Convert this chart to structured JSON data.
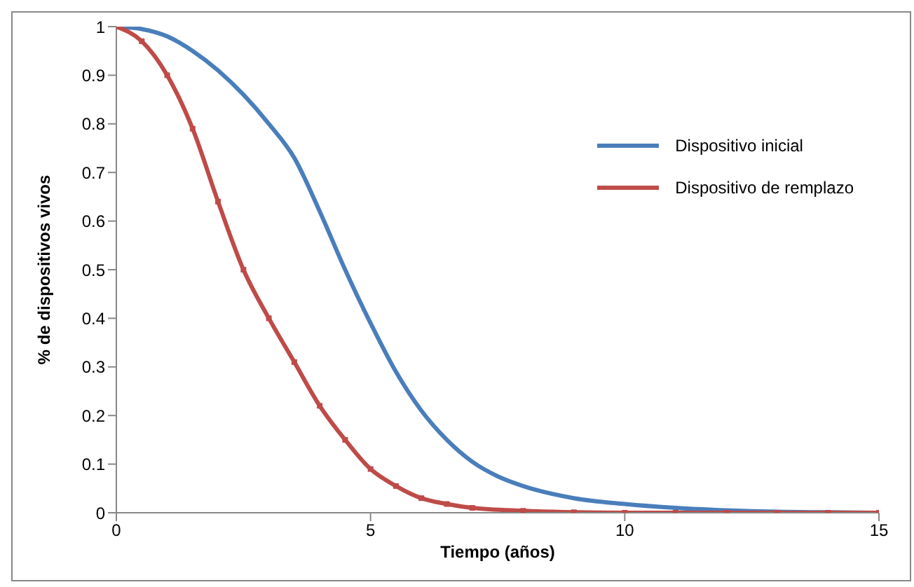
{
  "chart_data": {
    "type": "line",
    "xlabel": "Tiempo (años)",
    "ylabel": "% de dispositivos vivos",
    "xlim": [
      0,
      15
    ],
    "xticks": [
      0,
      5,
      10,
      15
    ],
    "ylim": [
      0,
      1
    ],
    "yticks": [
      0,
      0.1,
      0.2,
      0.3,
      0.4,
      0.5,
      0.6,
      0.7,
      0.8,
      0.9,
      1
    ],
    "grid": false,
    "legend": "top right",
    "series": [
      {
        "name": "Dispositivo inicial",
        "color": "#4a7ebb",
        "marker": "none",
        "x": [
          0,
          0.5,
          1,
          1.5,
          2,
          2.5,
          3,
          3.5,
          4,
          4.5,
          5,
          5.5,
          6,
          6.5,
          7,
          7.5,
          8,
          9,
          10,
          11,
          12,
          13,
          14,
          15
        ],
        "values": [
          1,
          0.995,
          0.98,
          0.95,
          0.91,
          0.86,
          0.8,
          0.73,
          0.62,
          0.5,
          0.39,
          0.29,
          0.21,
          0.15,
          0.105,
          0.075,
          0.055,
          0.03,
          0.018,
          0.01,
          0.005,
          0.002,
          0.001,
          0
        ]
      },
      {
        "name": "Dispositivo de remplazo",
        "color": "#be4b48",
        "marker": "square",
        "x": [
          0,
          0.5,
          1,
          1.5,
          2,
          2.5,
          3,
          3.5,
          4,
          4.5,
          5,
          5.5,
          6,
          6.5,
          7,
          8,
          9,
          10,
          11,
          12,
          13,
          14,
          15
        ],
        "values": [
          1,
          0.97,
          0.9,
          0.79,
          0.64,
          0.5,
          0.4,
          0.31,
          0.22,
          0.15,
          0.09,
          0.055,
          0.03,
          0.018,
          0.01,
          0.004,
          0.001,
          0,
          0,
          0,
          0,
          0,
          0
        ]
      }
    ]
  }
}
